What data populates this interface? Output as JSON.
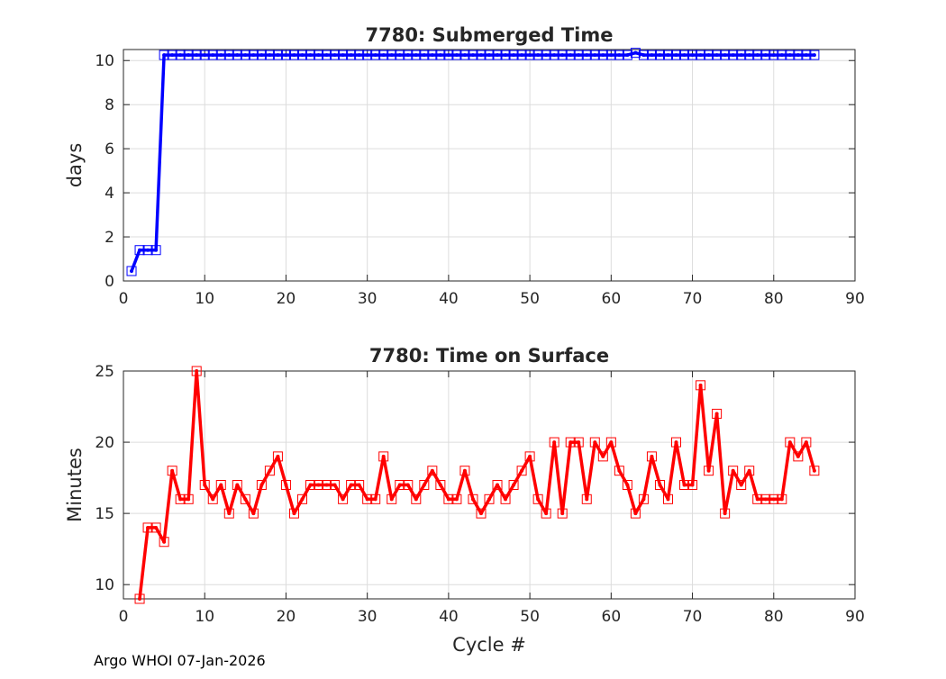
{
  "chart_data": [
    {
      "type": "line",
      "title": "7780: Submerged Time",
      "xlabel": "",
      "ylabel": "days",
      "xlim": [
        0,
        90
      ],
      "ylim": [
        0,
        10.5
      ],
      "xticks": [
        0,
        10,
        20,
        30,
        40,
        50,
        60,
        70,
        80,
        90
      ],
      "yticks": [
        0,
        2,
        4,
        6,
        8,
        10
      ],
      "grid": true,
      "color": "#0000ff",
      "marker": "square",
      "series": [
        {
          "name": "Submerged Time",
          "x": [
            1,
            2,
            3,
            4,
            5,
            6,
            7,
            8,
            9,
            10,
            11,
            12,
            13,
            14,
            15,
            16,
            17,
            18,
            19,
            20,
            21,
            22,
            23,
            24,
            25,
            26,
            27,
            28,
            29,
            30,
            31,
            32,
            33,
            34,
            35,
            36,
            37,
            38,
            39,
            40,
            41,
            42,
            43,
            44,
            45,
            46,
            47,
            48,
            49,
            50,
            51,
            52,
            53,
            54,
            55,
            56,
            57,
            58,
            59,
            60,
            61,
            62,
            63,
            64,
            65,
            66,
            67,
            68,
            69,
            70,
            71,
            72,
            73,
            74,
            75,
            76,
            77,
            78,
            79,
            80,
            81,
            82,
            83,
            84,
            85
          ],
          "y": [
            0.45,
            1.4,
            1.4,
            1.4,
            10.25,
            10.25,
            10.25,
            10.25,
            10.25,
            10.25,
            10.25,
            10.25,
            10.25,
            10.25,
            10.25,
            10.25,
            10.25,
            10.25,
            10.25,
            10.25,
            10.25,
            10.25,
            10.25,
            10.25,
            10.25,
            10.25,
            10.25,
            10.25,
            10.25,
            10.25,
            10.25,
            10.25,
            10.25,
            10.25,
            10.25,
            10.25,
            10.25,
            10.25,
            10.25,
            10.25,
            10.25,
            10.25,
            10.25,
            10.25,
            10.25,
            10.25,
            10.25,
            10.25,
            10.25,
            10.25,
            10.25,
            10.25,
            10.25,
            10.25,
            10.25,
            10.25,
            10.25,
            10.25,
            10.25,
            10.25,
            10.25,
            10.25,
            10.35,
            10.25,
            10.25,
            10.25,
            10.25,
            10.25,
            10.25,
            10.25,
            10.25,
            10.25,
            10.25,
            10.25,
            10.25,
            10.25,
            10.25,
            10.25,
            10.25,
            10.25,
            10.25,
            10.25,
            10.25,
            10.25,
            10.25
          ]
        }
      ]
    },
    {
      "type": "line",
      "title": "7780: Time on Surface",
      "xlabel": "Cycle #",
      "ylabel": "Minutes",
      "xlim": [
        0,
        90
      ],
      "ylim": [
        9,
        25
      ],
      "xticks": [
        0,
        10,
        20,
        30,
        40,
        50,
        60,
        70,
        80,
        90
      ],
      "yticks": [
        10,
        15,
        20,
        25
      ],
      "grid": true,
      "color": "#ff0000",
      "marker": "square",
      "series": [
        {
          "name": "Time on Surface",
          "x": [
            2,
            3,
            4,
            5,
            6,
            7,
            8,
            9,
            10,
            11,
            12,
            13,
            14,
            15,
            16,
            17,
            18,
            19,
            20,
            21,
            22,
            23,
            24,
            25,
            26,
            27,
            28,
            29,
            30,
            31,
            32,
            33,
            34,
            35,
            36,
            37,
            38,
            39,
            40,
            41,
            42,
            43,
            44,
            45,
            46,
            47,
            48,
            49,
            50,
            51,
            52,
            53,
            54,
            55,
            56,
            57,
            58,
            59,
            60,
            61,
            62,
            63,
            64,
            65,
            66,
            67,
            68,
            69,
            70,
            71,
            72,
            73,
            74,
            75,
            76,
            77,
            78,
            79,
            80,
            81,
            82,
            83,
            84,
            85
          ],
          "y": [
            9,
            14,
            14,
            13,
            18,
            16,
            16,
            25,
            17,
            16,
            17,
            15,
            17,
            16,
            15,
            17,
            18,
            19,
            17,
            15,
            16,
            17,
            17,
            17,
            17,
            16,
            17,
            17,
            16,
            16,
            19,
            16,
            17,
            17,
            16,
            17,
            18,
            17,
            16,
            16,
            18,
            16,
            15,
            16,
            17,
            16,
            17,
            18,
            19,
            16,
            15,
            20,
            15,
            20,
            20,
            16,
            20,
            19,
            20,
            18,
            17,
            15,
            16,
            19,
            17,
            16,
            20,
            17,
            17,
            24,
            18,
            22,
            15,
            18,
            17,
            18,
            16,
            16,
            16,
            16,
            20,
            19,
            20,
            18
          ]
        }
      ]
    }
  ],
  "footer": "Argo WHOI 07-Jan-2026"
}
